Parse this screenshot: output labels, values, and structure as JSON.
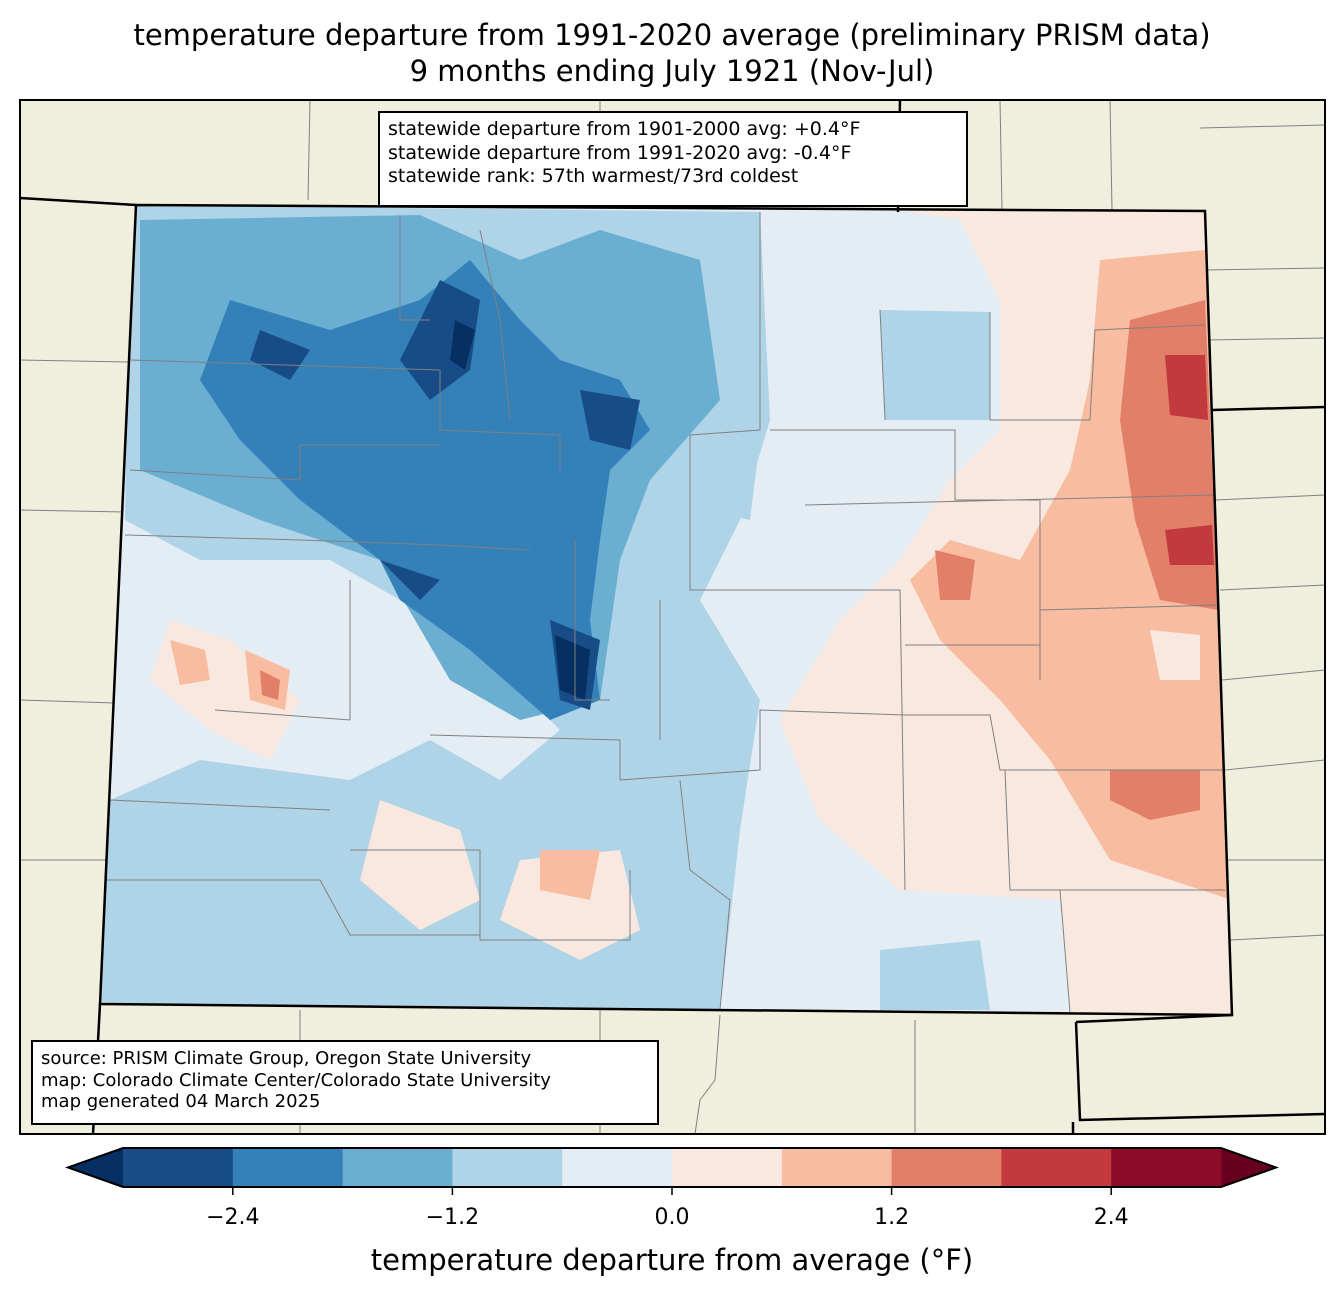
{
  "title": {
    "line1": "temperature departure from 1991-2020 average (preliminary PRISM data)",
    "line2": "9 months ending July 1921 (Nov-Jul)"
  },
  "stats": {
    "line1": "statewide departure from 1901-2000 avg: +0.4°F",
    "line2": "statewide departure from 1991-2020 avg: -0.4°F",
    "line3": "statewide rank: 57th warmest/73rd coldest"
  },
  "source": {
    "line1": "source: PRISM Climate Group, Oregon State University",
    "line2": "map: Colorado Climate Center/Colorado State University",
    "line3": "map generated 04 March 2025"
  },
  "chart_data": {
    "type": "heatmap",
    "region": "Colorado",
    "variable": "temperature departure from average (°F)",
    "colorbar": {
      "label": "temperature departure from average (°F)",
      "levels": [
        -3.0,
        -2.4,
        -1.8,
        -1.2,
        -0.6,
        0.0,
        0.6,
        1.2,
        1.8,
        2.4,
        3.0
      ],
      "ticks": [
        -2.4,
        -1.2,
        0.0,
        1.2,
        2.4
      ],
      "tick_labels": [
        "−2.4",
        "−1.2",
        "0.0",
        "1.2",
        "2.4"
      ],
      "extend": "both",
      "colors": [
        "#174c86",
        "#3480b9",
        "#6aaed2",
        "#b0d4e7",
        "#e4edf4",
        "#f9e8df",
        "#f8bda1",
        "#e27f68",
        "#c23a3d",
        "#8a0c26"
      ],
      "under_color": "#053061",
      "over_color": "#67001f"
    },
    "pattern": "western and central mountains mostly below average (-0.6 to -3.0); eastern plains above average, warmest (+1.8 to +2.4) near the eastern border"
  },
  "colors": {
    "land": "#f0eedc",
    "county_line": "#808080"
  }
}
